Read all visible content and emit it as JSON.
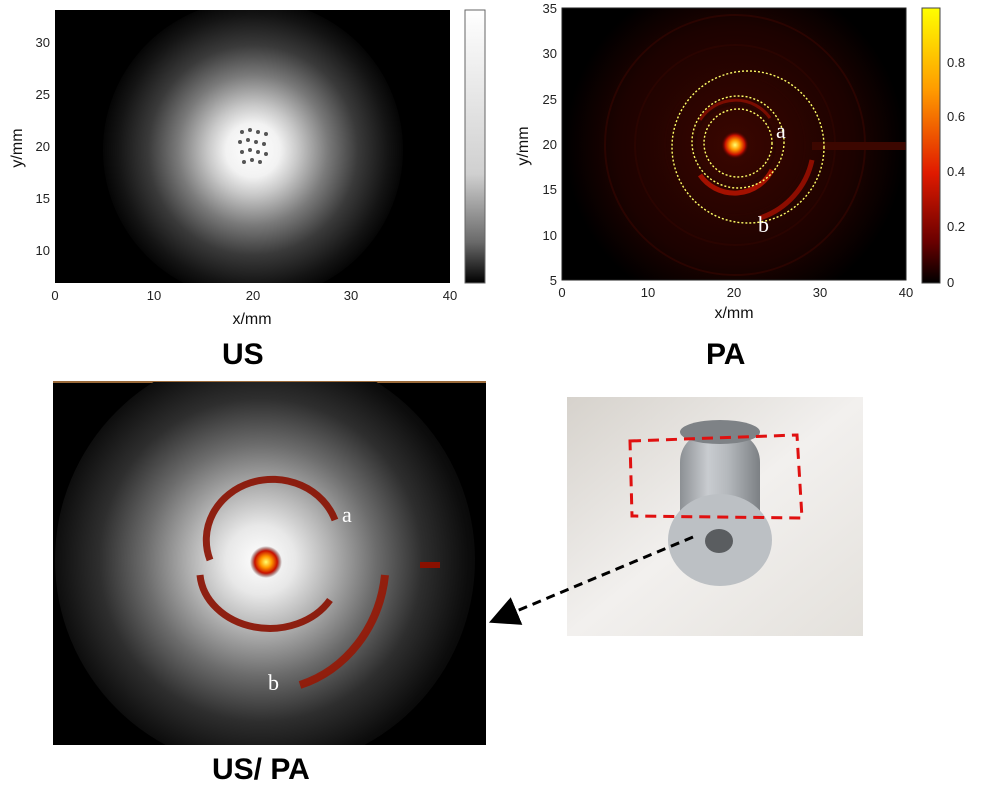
{
  "chart_data": [
    {
      "type": "heatmap",
      "caption": "US",
      "xlabel": "x/mm",
      "ylabel": "y/mm",
      "xlim": [
        0,
        40
      ],
      "ylim": [
        7,
        33
      ],
      "xticks": [
        "0",
        "10",
        "20",
        "30",
        "40"
      ],
      "yticks": [
        "10",
        "15",
        "20",
        "25",
        "30"
      ],
      "colormap": "gray",
      "colorbar_ticks": []
    },
    {
      "type": "heatmap",
      "caption": "PA",
      "xlabel": "x/mm",
      "ylabel": "y/mm",
      "xlim": [
        0,
        40
      ],
      "ylim": [
        5,
        35
      ],
      "xticks": [
        "0",
        "10",
        "20",
        "30",
        "40"
      ],
      "yticks": [
        "5",
        "10",
        "15",
        "20",
        "25",
        "30",
        "35"
      ],
      "colormap": "hot",
      "colorbar_ticks": [
        "0",
        "0.2",
        "0.4",
        "0.6",
        "0.8"
      ],
      "annotations": [
        "a",
        "b"
      ]
    },
    {
      "type": "heatmap",
      "caption": "US/ PA",
      "annotations": [
        "a",
        "b"
      ]
    }
  ],
  "photo": {
    "description_visible": false
  }
}
